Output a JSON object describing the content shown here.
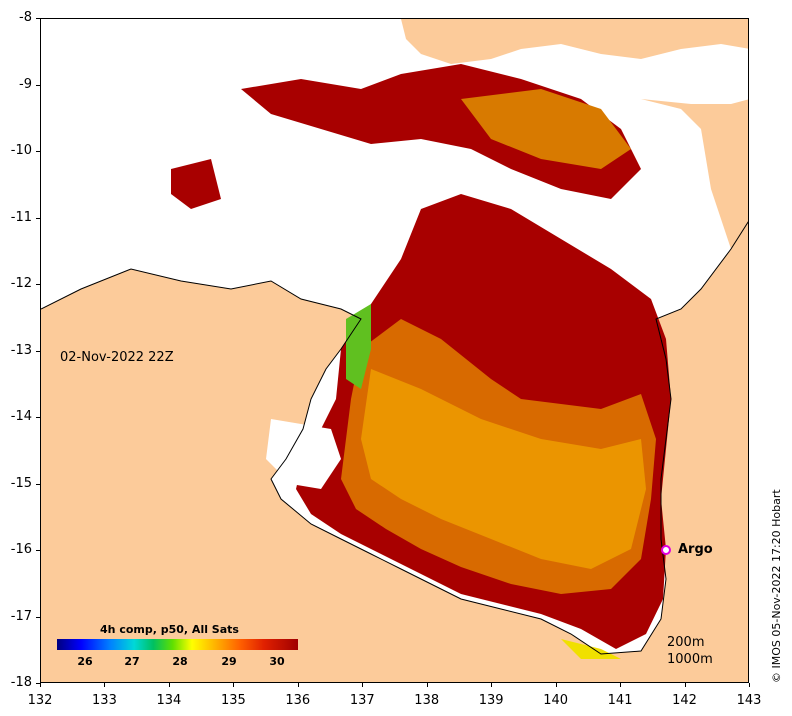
{
  "map": {
    "date_label": "02-Nov-2022 22Z",
    "credit": "© IMOS 05-Nov-2022 17:20 Hobart",
    "lat_ticks": [
      "-8",
      "-9",
      "-10",
      "-11",
      "-12",
      "-13",
      "-14",
      "-15",
      "-16",
      "-17",
      "-18"
    ],
    "lon_ticks": [
      "132",
      "133",
      "134",
      "135",
      "136",
      "137",
      "138",
      "139",
      "140",
      "141",
      "142",
      "143"
    ],
    "lat_range": [
      -18,
      -8
    ],
    "lon_range": [
      132,
      143
    ],
    "land_color": "#fccb9a",
    "no_data_color": "#ffffff"
  },
  "argo": {
    "label": "Argo",
    "lon": 141.7,
    "lat": -16.0,
    "color": "#e000e0"
  },
  "depth_legend": {
    "line1": "200m",
    "line2": "1000m"
  },
  "colorbar": {
    "title": "4h comp, p50, All Sats",
    "ticks": [
      "26",
      "27",
      "28",
      "29",
      "30"
    ],
    "colors": [
      "#00007f",
      "#0000ff",
      "#0080ff",
      "#00d8d8",
      "#00c060",
      "#60e000",
      "#ffff00",
      "#ffb000",
      "#ff6000",
      "#e02000",
      "#a00000"
    ]
  }
}
